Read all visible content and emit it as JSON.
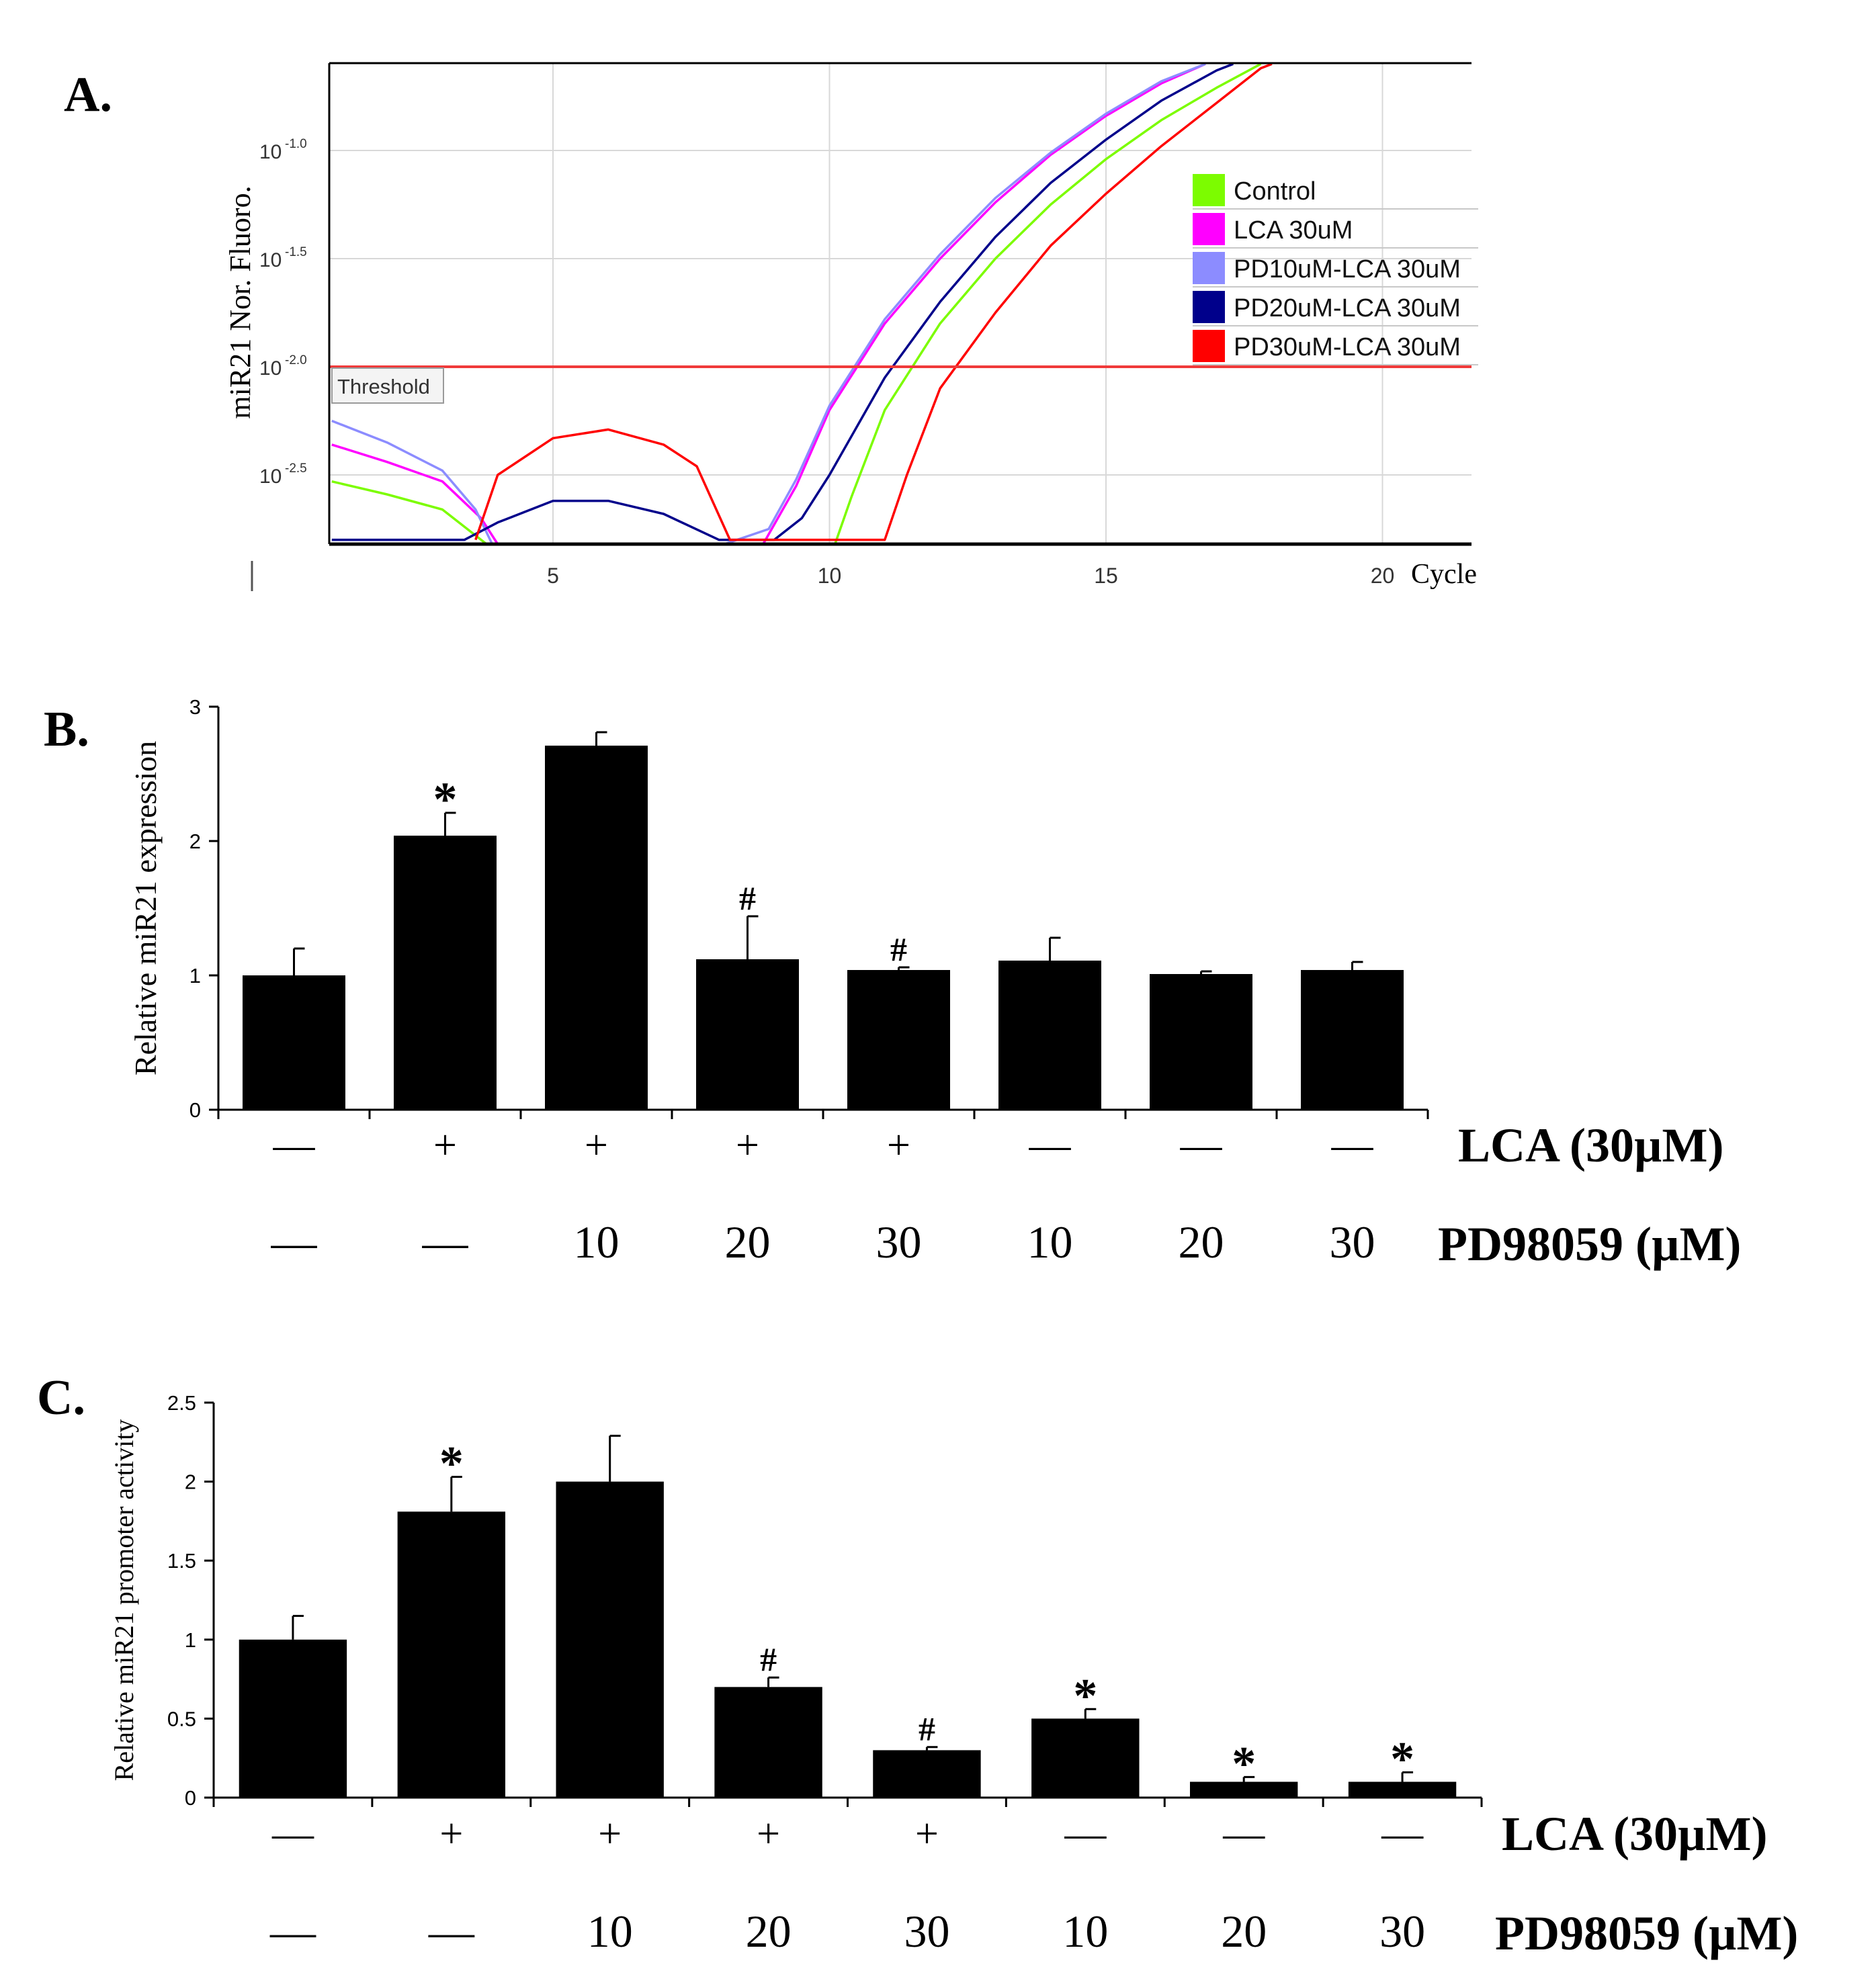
{
  "chart_data": [
    {
      "panel": "A.",
      "type": "line",
      "ylabel": "miR21 Nor. Fluoro.",
      "xlabel": "Cycle",
      "x_ticks": [
        "5",
        "10",
        "15",
        "20"
      ],
      "y_ticks": [
        {
          "base": "10",
          "exp": "-1.0"
        },
        {
          "base": "10",
          "exp": "-1.5"
        },
        {
          "base": "10",
          "exp": "-2.0"
        },
        {
          "base": "10",
          "exp": "-2.5"
        }
      ],
      "xlim": [
        1,
        21.6
      ],
      "ylim_log10": [
        -2.8,
        -0.6
      ],
      "threshold": {
        "label": "Threshold",
        "log10_value": -2.0,
        "color": "#f03a3a"
      },
      "series": [
        {
          "name": "Control",
          "color": "#7cfc00",
          "points": [
            [
              1,
              -2.53
            ],
            [
              2,
              -2.59
            ],
            [
              3,
              -2.66
            ],
            [
              3.8,
              -2.82
            ],
            [
              10.1,
              -2.82
            ],
            [
              10.4,
              -2.6
            ],
            [
              11,
              -2.2
            ],
            [
              12,
              -1.8
            ],
            [
              13,
              -1.5
            ],
            [
              14,
              -1.25
            ],
            [
              15,
              -1.04
            ],
            [
              16,
              -0.86
            ],
            [
              17,
              -0.71
            ],
            [
              17.8,
              -0.6
            ]
          ]
        },
        {
          "name": "LCA 30uM",
          "color": "#ff00ff",
          "points": [
            [
              1,
              -2.36
            ],
            [
              2,
              -2.44
            ],
            [
              3,
              -2.53
            ],
            [
              3.7,
              -2.7
            ],
            [
              4,
              -2.82
            ],
            [
              8.8,
              -2.82
            ],
            [
              9.4,
              -2.55
            ],
            [
              10,
              -2.2
            ],
            [
              11,
              -1.8
            ],
            [
              12,
              -1.5
            ],
            [
              13,
              -1.24
            ],
            [
              14,
              -1.02
            ],
            [
              15,
              -0.84
            ],
            [
              16,
              -0.69
            ],
            [
              16.8,
              -0.6
            ]
          ]
        },
        {
          "name": "PD10uM-LCA 30uM",
          "color": "#8c8cff",
          "points": [
            [
              1,
              -2.25
            ],
            [
              2,
              -2.35
            ],
            [
              3,
              -2.48
            ],
            [
              3.6,
              -2.66
            ],
            [
              3.9,
              -2.82
            ],
            [
              8.1,
              -2.82
            ],
            [
              8.9,
              -2.75
            ],
            [
              9.4,
              -2.52
            ],
            [
              10,
              -2.18
            ],
            [
              11,
              -1.78
            ],
            [
              12,
              -1.48
            ],
            [
              13,
              -1.22
            ],
            [
              14,
              -1.01
            ],
            [
              15,
              -0.83
            ],
            [
              16,
              -0.68
            ],
            [
              16.8,
              -0.6
            ]
          ]
        },
        {
          "name": "PD20uM-LCA 30uM",
          "color": "#00008b",
          "points": [
            [
              1,
              -2.8
            ],
            [
              3.4,
              -2.8
            ],
            [
              4,
              -2.72
            ],
            [
              5,
              -2.62
            ],
            [
              6,
              -2.62
            ],
            [
              7,
              -2.68
            ],
            [
              8,
              -2.8
            ],
            [
              9,
              -2.8
            ],
            [
              9.5,
              -2.7
            ],
            [
              10,
              -2.5
            ],
            [
              11,
              -2.05
            ],
            [
              12,
              -1.7
            ],
            [
              13,
              -1.4
            ],
            [
              14,
              -1.15
            ],
            [
              15,
              -0.95
            ],
            [
              16,
              -0.77
            ],
            [
              17,
              -0.63
            ],
            [
              17.3,
              -0.6
            ]
          ]
        },
        {
          "name": "PD30uM-LCA 30uM",
          "color": "#ff0000",
          "points": [
            [
              3.6,
              -2.8
            ],
            [
              4,
              -2.5
            ],
            [
              5,
              -2.33
            ],
            [
              6,
              -2.29
            ],
            [
              7,
              -2.36
            ],
            [
              7.6,
              -2.46
            ],
            [
              8.2,
              -2.8
            ],
            [
              11,
              -2.8
            ],
            [
              11.4,
              -2.5
            ],
            [
              12,
              -2.1
            ],
            [
              13,
              -1.75
            ],
            [
              14,
              -1.44
            ],
            [
              15,
              -1.2
            ],
            [
              16,
              -0.98
            ],
            [
              17,
              -0.78
            ],
            [
              17.8,
              -0.62
            ],
            [
              18,
              -0.6
            ]
          ]
        }
      ]
    },
    {
      "panel": "B.",
      "type": "bar",
      "ylabel": "Relative miR21 expression",
      "ylim": [
        0,
        3
      ],
      "y_ticks": [
        "0",
        "1",
        "2",
        "3"
      ],
      "values": [
        1.0,
        2.04,
        2.71,
        1.12,
        1.04,
        1.11,
        1.01,
        1.04
      ],
      "errors": [
        0.2,
        0.17,
        0.1,
        0.32,
        0.02,
        0.17,
        0.02,
        0.06
      ],
      "markers": [
        "",
        "*",
        "",
        "#",
        "#",
        "",
        "",
        ""
      ],
      "row_labels": [
        "LCA (30µM)",
        "PD98059 (µM)"
      ],
      "lca": [
        "—",
        "+",
        "+",
        "+",
        "+",
        "—",
        "—",
        "—"
      ],
      "pd": [
        "—",
        "—",
        "10",
        "20",
        "30",
        "10",
        "20",
        "30"
      ]
    },
    {
      "panel": "C.",
      "type": "bar",
      "ylabel": "Relative miR21 promoter activity",
      "ylim": [
        0,
        2.5
      ],
      "y_ticks": [
        "0",
        "0.5",
        "1",
        "1.5",
        "2",
        "2.5"
      ],
      "values": [
        1.0,
        1.81,
        2.0,
        0.7,
        0.3,
        0.5,
        0.1,
        0.1
      ],
      "errors": [
        0.15,
        0.22,
        0.29,
        0.06,
        0.02,
        0.06,
        0.03,
        0.06
      ],
      "markers": [
        "",
        "*",
        "",
        "#",
        "#",
        "*",
        "*",
        "*"
      ],
      "row_labels": [
        "LCA (30µM)",
        "PD98059 (µM)"
      ],
      "lca": [
        "—",
        "+",
        "+",
        "+",
        "+",
        "—",
        "—",
        "—"
      ],
      "pd": [
        "—",
        "—",
        "10",
        "20",
        "30",
        "10",
        "20",
        "30"
      ]
    }
  ]
}
